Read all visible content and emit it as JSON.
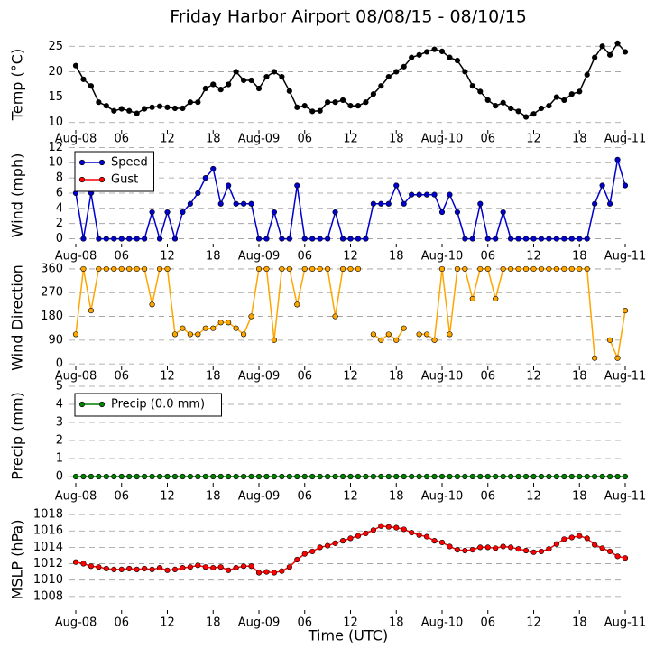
{
  "chart_data": [
    {
      "type": "line",
      "title": "Friday Harbor Airport 08/08/15 - 08/10/15",
      "ylabel": "Temp (°C)",
      "grid": true,
      "x": [
        0,
        1,
        2,
        3,
        4,
        5,
        6,
        7,
        8,
        9,
        10,
        11,
        12,
        13,
        14,
        15,
        16,
        17,
        18,
        19,
        20,
        21,
        22,
        23,
        24,
        25,
        26,
        27,
        28,
        29,
        30,
        31,
        32,
        33,
        34,
        35,
        36,
        37,
        38,
        39,
        40,
        41,
        42,
        43,
        44,
        45,
        46,
        47,
        48,
        49,
        50,
        51,
        52,
        53,
        54,
        55,
        56,
        57,
        58,
        59,
        60,
        61,
        62,
        63,
        64,
        65,
        66,
        67,
        68,
        69,
        70,
        71,
        72
      ],
      "xlim": [
        0,
        72
      ],
      "xticks": [
        {
          "value": 0,
          "label": "Aug-08"
        },
        {
          "value": 6,
          "label": "06"
        },
        {
          "value": 12,
          "label": "12"
        },
        {
          "value": 18,
          "label": "18"
        },
        {
          "value": 24,
          "label": "Aug-09"
        },
        {
          "value": 30,
          "label": "06"
        },
        {
          "value": 36,
          "label": "12"
        },
        {
          "value": 42,
          "label": "18"
        },
        {
          "value": 48,
          "label": "Aug-10"
        },
        {
          "value": 54,
          "label": "06"
        },
        {
          "value": 60,
          "label": "12"
        },
        {
          "value": 66,
          "label": "18"
        },
        {
          "value": 72,
          "label": "Aug-11"
        }
      ],
      "ylim": [
        8,
        27
      ],
      "yticks": [
        10,
        15,
        20,
        25
      ],
      "color": "#000000",
      "values": [
        21.2,
        18.5,
        17.2,
        14,
        13.3,
        12.3,
        12.7,
        12.3,
        11.8,
        12.7,
        13,
        13.2,
        13,
        12.8,
        12.8,
        14,
        14,
        16.7,
        17.5,
        16.5,
        17.5,
        20,
        18.3,
        18.3,
        16.7,
        19,
        20,
        19,
        16.2,
        13,
        13.3,
        12.2,
        12.3,
        14,
        14,
        14.4,
        13.3,
        13.3,
        14,
        15.6,
        17.2,
        19,
        20,
        21,
        22.8,
        23.3,
        23.9,
        24.4,
        24,
        22.8,
        22.2,
        20,
        17.2,
        16.1,
        14.4,
        13.3,
        13.9,
        12.8,
        12.2,
        11.1,
        11.7,
        12.8,
        13.3,
        15,
        14.4,
        15.6,
        16.1,
        19.4,
        22.8,
        25,
        23.3,
        25.6,
        23.9
      ]
    },
    {
      "type": "line",
      "ylabel": "Wind (mph)",
      "grid": true,
      "legend": "upper left",
      "x": [
        0,
        1,
        2,
        3,
        4,
        5,
        6,
        7,
        8,
        9,
        10,
        11,
        12,
        13,
        14,
        15,
        16,
        17,
        18,
        19,
        20,
        21,
        22,
        23,
        24,
        25,
        26,
        27,
        28,
        29,
        30,
        31,
        32,
        33,
        34,
        35,
        36,
        37,
        38,
        39,
        40,
        41,
        42,
        43,
        44,
        45,
        46,
        47,
        48,
        49,
        50,
        51,
        52,
        53,
        54,
        55,
        56,
        57,
        58,
        59,
        60,
        61,
        62,
        63,
        64,
        65,
        66,
        67,
        68,
        69,
        70,
        71,
        72
      ],
      "xlim": [
        0,
        72
      ],
      "xticks": [
        {
          "value": 0,
          "label": "Aug-08"
        },
        {
          "value": 6,
          "label": "06"
        },
        {
          "value": 12,
          "label": "12"
        },
        {
          "value": 18,
          "label": "18"
        },
        {
          "value": 24,
          "label": "Aug-09"
        },
        {
          "value": 30,
          "label": "06"
        },
        {
          "value": 36,
          "label": "12"
        },
        {
          "value": 42,
          "label": "18"
        },
        {
          "value": 48,
          "label": "Aug-10"
        },
        {
          "value": 54,
          "label": "06"
        },
        {
          "value": 60,
          "label": "12"
        },
        {
          "value": 66,
          "label": "18"
        },
        {
          "value": 72,
          "label": "Aug-11"
        }
      ],
      "ylim": [
        -1,
        12.4
      ],
      "yticks": [
        0,
        2,
        4,
        6,
        8,
        10,
        12
      ],
      "series": [
        {
          "name": "Speed",
          "color": "#0000cc",
          "values": [
            6,
            0,
            6,
            0,
            0,
            0,
            0,
            0,
            0,
            0,
            3.5,
            0,
            3.5,
            0,
            3.5,
            4.6,
            6,
            8,
            9.2,
            4.6,
            7,
            4.6,
            4.6,
            4.6,
            0,
            0,
            3.5,
            0,
            0,
            7,
            0,
            0,
            0,
            0,
            3.5,
            0,
            0,
            0,
            0,
            4.6,
            4.6,
            4.6,
            7,
            4.6,
            5.8,
            5.8,
            5.8,
            5.8,
            3.5,
            5.8,
            3.5,
            0,
            0,
            4.6,
            0,
            0,
            3.5,
            0,
            0,
            0,
            0,
            0,
            0,
            0,
            0,
            0,
            0,
            0,
            4.6,
            7,
            4.6,
            10.4,
            7
          ]
        },
        {
          "name": "Gust",
          "color": "#ff0000",
          "values": [
            null,
            null,
            null,
            null,
            null,
            null,
            null,
            null,
            null,
            null,
            null,
            null,
            null,
            null,
            null,
            null,
            null,
            null,
            null,
            null,
            null,
            null,
            null,
            null,
            null,
            null,
            null,
            null,
            null,
            null,
            null,
            null,
            null,
            null,
            null,
            null,
            null,
            null,
            null,
            null,
            null,
            null,
            null,
            null,
            null,
            null,
            null,
            null,
            null,
            null,
            null,
            null,
            null,
            null,
            null,
            null,
            null,
            null,
            null,
            null,
            null,
            null,
            null,
            null,
            null,
            null,
            null,
            null,
            null,
            null,
            null,
            null,
            null
          ]
        }
      ]
    },
    {
      "type": "line",
      "ylabel": "Wind Direction",
      "grid": true,
      "x": [
        0,
        1,
        2,
        3,
        4,
        5,
        6,
        7,
        8,
        9,
        10,
        11,
        12,
        13,
        14,
        15,
        16,
        17,
        18,
        19,
        20,
        21,
        22,
        23,
        24,
        25,
        26,
        27,
        28,
        29,
        30,
        31,
        32,
        33,
        34,
        35,
        36,
        37,
        38,
        39,
        40,
        41,
        42,
        43,
        44,
        45,
        46,
        47,
        48,
        49,
        50,
        51,
        52,
        53,
        54,
        55,
        56,
        57,
        58,
        59,
        60,
        61,
        62,
        63,
        64,
        65,
        66,
        67,
        68,
        69,
        70,
        71,
        72
      ],
      "xlim": [
        0,
        72
      ],
      "xticks": [
        {
          "value": 0,
          "label": "Aug-08"
        },
        {
          "value": 6,
          "label": "06"
        },
        {
          "value": 12,
          "label": "12"
        },
        {
          "value": 18,
          "label": "18"
        },
        {
          "value": 24,
          "label": "Aug-09"
        },
        {
          "value": 30,
          "label": "06"
        },
        {
          "value": 36,
          "label": "12"
        },
        {
          "value": 42,
          "label": "18"
        },
        {
          "value": 48,
          "label": "Aug-10"
        },
        {
          "value": 54,
          "label": "06"
        },
        {
          "value": 60,
          "label": "12"
        },
        {
          "value": 66,
          "label": "18"
        },
        {
          "value": 72,
          "label": "Aug-11"
        }
      ],
      "ylim": [
        -20,
        370
      ],
      "yticks": [
        0,
        90,
        180,
        270,
        360
      ],
      "color": "#ffa500",
      "values": [
        112,
        360,
        202,
        360,
        360,
        360,
        360,
        360,
        360,
        360,
        225,
        360,
        360,
        112,
        135,
        112,
        112,
        135,
        135,
        157,
        157,
        135,
        112,
        180,
        360,
        360,
        90,
        360,
        360,
        225,
        360,
        360,
        360,
        360,
        180,
        360,
        360,
        360,
        null,
        112,
        90,
        112,
        90,
        135,
        null,
        112,
        112,
        90,
        360,
        112,
        360,
        360,
        247,
        360,
        360,
        247,
        360,
        360,
        360,
        360,
        360,
        360,
        360,
        360,
        360,
        360,
        360,
        360,
        22,
        null,
        90,
        22,
        202
      ]
    },
    {
      "type": "line",
      "ylabel": "Precip (mm)",
      "grid": true,
      "legend": "upper left",
      "x": [
        0,
        1,
        2,
        3,
        4,
        5,
        6,
        7,
        8,
        9,
        10,
        11,
        12,
        13,
        14,
        15,
        16,
        17,
        18,
        19,
        20,
        21,
        22,
        23,
        24,
        25,
        26,
        27,
        28,
        29,
        30,
        31,
        32,
        33,
        34,
        35,
        36,
        37,
        38,
        39,
        40,
        41,
        42,
        43,
        44,
        45,
        46,
        47,
        48,
        49,
        50,
        51,
        52,
        53,
        54,
        55,
        56,
        57,
        58,
        59,
        60,
        61,
        62,
        63,
        64,
        65,
        66,
        67,
        68,
        69,
        70,
        71,
        72
      ],
      "xlim": [
        0,
        72
      ],
      "xticks": [
        {
          "value": 0,
          "label": "Aug-08"
        },
        {
          "value": 6,
          "label": "06"
        },
        {
          "value": 12,
          "label": "12"
        },
        {
          "value": 18,
          "label": "18"
        },
        {
          "value": 24,
          "label": "Aug-09"
        },
        {
          "value": 30,
          "label": "06"
        },
        {
          "value": 36,
          "label": "12"
        },
        {
          "value": 42,
          "label": "18"
        },
        {
          "value": 48,
          "label": "Aug-10"
        },
        {
          "value": 54,
          "label": "06"
        },
        {
          "value": 60,
          "label": "12"
        },
        {
          "value": 66,
          "label": "18"
        },
        {
          "value": 72,
          "label": "Aug-11"
        }
      ],
      "ylim": [
        -0.5,
        5
      ],
      "yticks": [
        0,
        1,
        2,
        3,
        4,
        5
      ],
      "series": [
        {
          "name": "Precip (0.0 mm)",
          "color": "#008000",
          "values": [
            0,
            0,
            0,
            0,
            0,
            0,
            0,
            0,
            0,
            0,
            0,
            0,
            0,
            0,
            0,
            0,
            0,
            0,
            0,
            0,
            0,
            0,
            0,
            0,
            0,
            0,
            0,
            0,
            0,
            0,
            0,
            0,
            0,
            0,
            0,
            0,
            0,
            0,
            0,
            0,
            0,
            0,
            0,
            0,
            0,
            0,
            0,
            0,
            0,
            0,
            0,
            0,
            0,
            0,
            0,
            0,
            0,
            0,
            0,
            0,
            0,
            0,
            0,
            0,
            0,
            0,
            0,
            0,
            0,
            0,
            0,
            0,
            0
          ]
        }
      ]
    },
    {
      "type": "line",
      "ylabel": "MSLP (hPa)",
      "xlabel": "Time (UTC)",
      "grid": true,
      "x": [
        0,
        1,
        2,
        3,
        4,
        5,
        6,
        7,
        8,
        9,
        10,
        11,
        12,
        13,
        14,
        15,
        16,
        17,
        18,
        19,
        20,
        21,
        22,
        23,
        24,
        25,
        26,
        27,
        28,
        29,
        30,
        31,
        32,
        33,
        34,
        35,
        36,
        37,
        38,
        39,
        40,
        41,
        42,
        43,
        44,
        45,
        46,
        47,
        48,
        49,
        50,
        51,
        52,
        53,
        54,
        55,
        56,
        57,
        58,
        59,
        60,
        61,
        62,
        63,
        64,
        65,
        66,
        67,
        68,
        69,
        70,
        71,
        72
      ],
      "xlim": [
        0,
        72
      ],
      "xticks": [
        {
          "value": 0,
          "label": "Aug-08"
        },
        {
          "value": 6,
          "label": "06"
        },
        {
          "value": 12,
          "label": "12"
        },
        {
          "value": 18,
          "label": "18"
        },
        {
          "value": 24,
          "label": "Aug-09"
        },
        {
          "value": 30,
          "label": "06"
        },
        {
          "value": 36,
          "label": "12"
        },
        {
          "value": 42,
          "label": "18"
        },
        {
          "value": 48,
          "label": "Aug-10"
        },
        {
          "value": 54,
          "label": "06"
        },
        {
          "value": 60,
          "label": "12"
        },
        {
          "value": 66,
          "label": "18"
        },
        {
          "value": 72,
          "label": "Aug-11"
        }
      ],
      "ylim": [
        1006,
        1019
      ],
      "yticks": [
        1008,
        1010,
        1012,
        1014,
        1016,
        1018
      ],
      "color": "#ff0000",
      "values": [
        1012.2,
        1012,
        1011.7,
        1011.6,
        1011.4,
        1011.3,
        1011.3,
        1011.4,
        1011.3,
        1011.4,
        1011.3,
        1011.5,
        1011.2,
        1011.3,
        1011.5,
        1011.6,
        1011.8,
        1011.6,
        1011.5,
        1011.6,
        1011.2,
        1011.5,
        1011.7,
        1011.7,
        1010.9,
        1011,
        1010.9,
        1011.1,
        1011.6,
        1012.5,
        1013.2,
        1013.5,
        1014,
        1014.2,
        1014.5,
        1014.8,
        1015.1,
        1015.4,
        1015.7,
        1016.1,
        1016.6,
        1016.5,
        1016.4,
        1016.2,
        1015.8,
        1015.5,
        1015.3,
        1014.8,
        1014.6,
        1014.1,
        1013.7,
        1013.6,
        1013.7,
        1014,
        1014,
        1013.9,
        1014.1,
        1014,
        1013.8,
        1013.6,
        1013.4,
        1013.5,
        1013.8,
        1014.4,
        1015,
        1015.2,
        1015.4,
        1015.1,
        1014.3,
        1013.9,
        1013.5,
        1012.9,
        1012.7
      ]
    }
  ]
}
